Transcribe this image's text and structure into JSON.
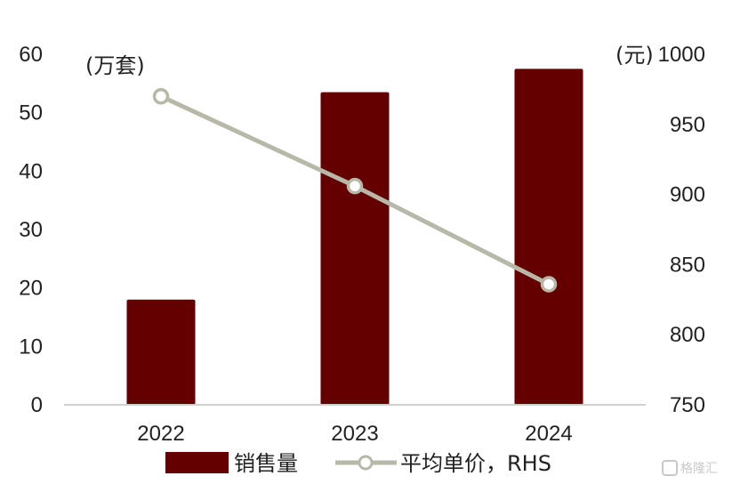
{
  "chart_data": {
    "type": "bar",
    "categories": [
      "2022",
      "2023",
      "2024"
    ],
    "series": [
      {
        "name": "销售量",
        "type": "bar",
        "axis": "left",
        "color": "#650000",
        "values": [
          18,
          53.5,
          57.5
        ]
      },
      {
        "name": "平均单价，RHS",
        "type": "line",
        "axis": "right",
        "color": "#b8b8a8",
        "marker_fill": "#ffffff",
        "values": [
          970,
          906,
          836
        ]
      }
    ],
    "left_axis": {
      "unit_label": "(万套)",
      "ylim": [
        0,
        60
      ],
      "ticks": [
        "0",
        "10",
        "20",
        "30",
        "40",
        "50",
        "60"
      ]
    },
    "right_axis": {
      "unit_label": "(元)",
      "ylim": [
        750,
        1000
      ],
      "ticks": [
        "750",
        "800",
        "850",
        "900",
        "950",
        "1000"
      ]
    },
    "grid": false,
    "legend_position": "bottom"
  },
  "watermark": {
    "text": "格隆汇",
    "icon": "gelonghui-logo-icon"
  }
}
